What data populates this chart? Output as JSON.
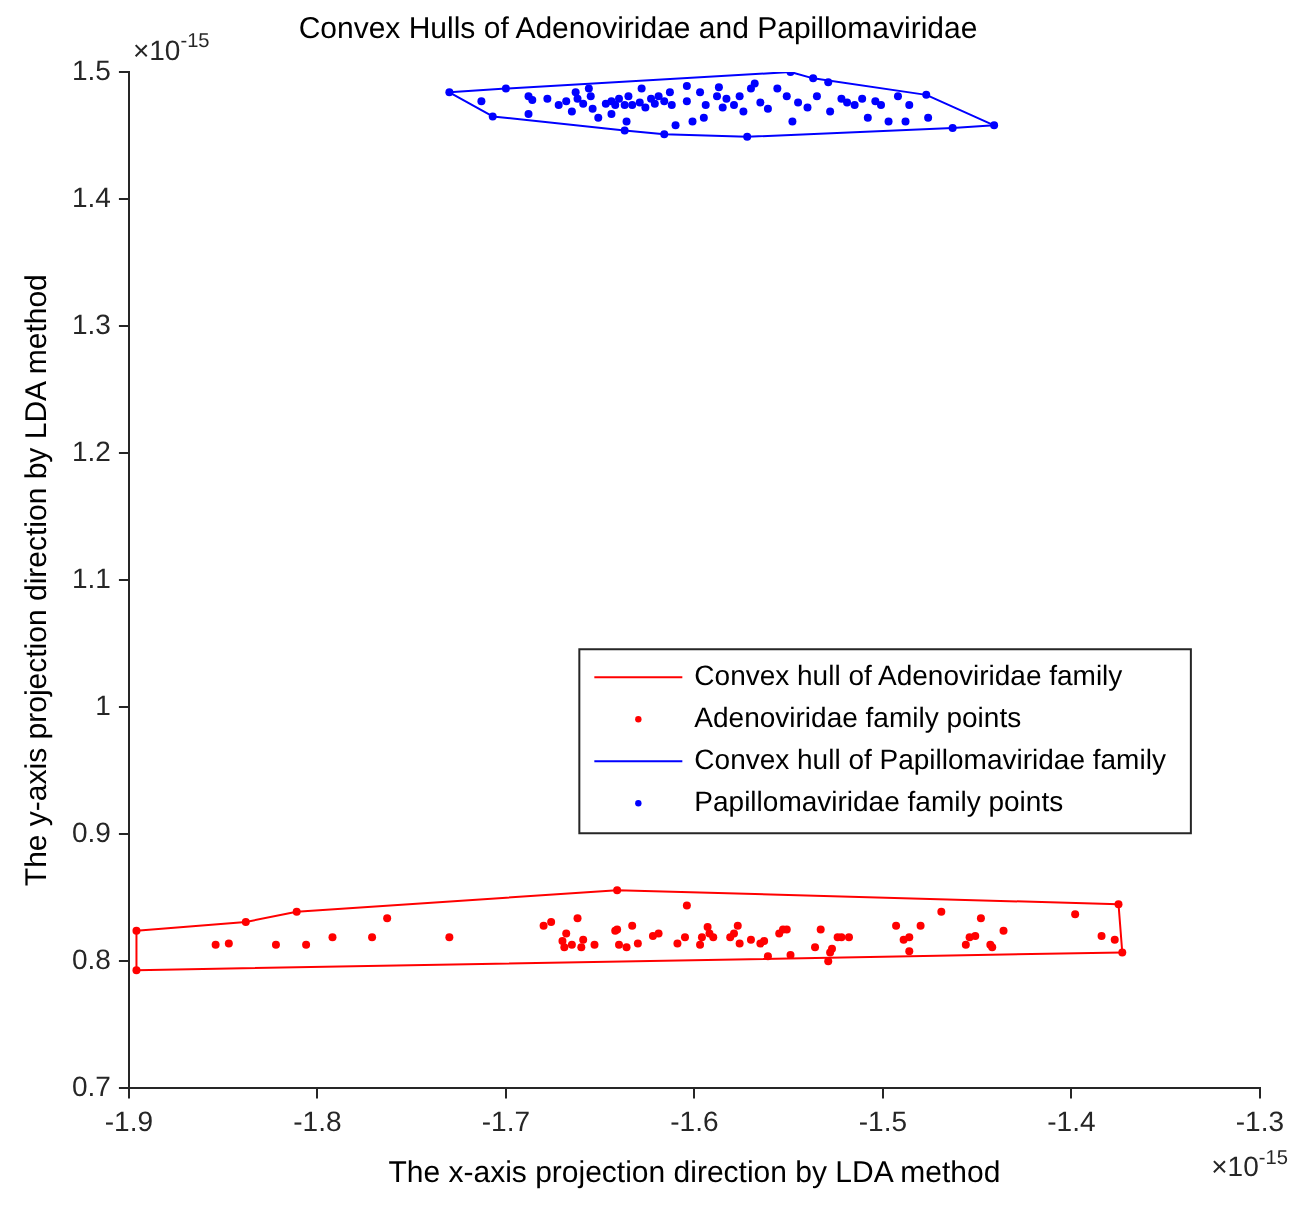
{
  "chart_data": {
    "type": "scatter",
    "title": "Convex Hulls of Adenoviridae and Papillomaviridae",
    "xlabel": "The x-axis projection direction by LDA method",
    "ylabel": "The y-axis projection direction by LDA method",
    "xlim": [
      -1.9,
      -1.3
    ],
    "xticks": [
      -1.9,
      -1.8,
      -1.7,
      -1.6,
      -1.5,
      -1.4,
      -1.3
    ],
    "ylim": [
      0.7,
      1.5
    ],
    "yticks": [
      0.7,
      0.8,
      0.9,
      1,
      1.1,
      1.2,
      1.3,
      1.4,
      1.5
    ],
    "grid": false,
    "legend": "right",
    "annotations": [
      "×10$^{-15}$",
      "×10$^{-15}$"
    ],
    "series": [
      {
        "name": "Convex hull of Adenoviridae family",
        "type": "line",
        "marker": "none",
        "color": "#ff0000",
        "x": [
          -1.896,
          -1.838,
          -1.811,
          -1.641,
          -1.375,
          -1.373
        ],
        "values": [
          0.824,
          0.831,
          0.839,
          0.856,
          0.845,
          0.807
        ]
      },
      {
        "type": "line",
        "marker": "none",
        "color": "#ff0000",
        "x": [
          -1.896,
          -1.896,
          -1.373
        ],
        "values": [
          0.824,
          0.793,
          0.807
        ]
      },
      {
        "name": "Adenoviridae family points",
        "type": "scatter",
        "marker": "circle",
        "color": "#ff0000",
        "x": [
          -1.896,
          -1.896,
          -1.373,
          -1.375,
          -1.641,
          -1.811,
          -1.838,
          -1.854,
          -1.847,
          -1.822,
          -1.806,
          -1.792,
          -1.771,
          -1.763,
          -1.73,
          -1.68,
          -1.676,
          -1.668,
          -1.67,
          -1.662,
          -1.659,
          -1.665,
          -1.669,
          -1.66,
          -1.653,
          -1.642,
          -1.641,
          -1.64,
          -1.636,
          -1.633,
          -1.63,
          -1.622,
          -1.619,
          -1.604,
          -1.609,
          -1.605,
          -1.596,
          -1.593,
          -1.597,
          -1.592,
          -1.59,
          -1.581,
          -1.579,
          -1.577,
          -1.576,
          -1.57,
          -1.565,
          -1.563,
          -1.561,
          -1.555,
          -1.553,
          -1.551,
          -1.549,
          -1.536,
          -1.533,
          -1.528,
          -1.527,
          -1.529,
          -1.524,
          -1.522,
          -1.518,
          -1.493,
          -1.489,
          -1.486,
          -1.486,
          -1.48,
          -1.469,
          -1.456,
          -1.454,
          -1.451,
          -1.448,
          -1.443,
          -1.442,
          -1.436,
          -1.398,
          -1.384,
          -1.377
        ],
        "values": [
          0.824,
          0.793,
          0.807,
          0.845,
          0.856,
          0.839,
          0.831,
          0.813,
          0.814,
          0.813,
          0.813,
          0.819,
          0.819,
          0.834,
          0.819,
          0.828,
          0.831,
          0.822,
          0.816,
          0.834,
          0.817,
          0.813,
          0.811,
          0.811,
          0.813,
          0.824,
          0.825,
          0.813,
          0.811,
          0.828,
          0.814,
          0.82,
          0.822,
          0.844,
          0.814,
          0.819,
          0.819,
          0.827,
          0.813,
          0.822,
          0.819,
          0.819,
          0.822,
          0.828,
          0.814,
          0.817,
          0.814,
          0.816,
          0.804,
          0.822,
          0.825,
          0.825,
          0.805,
          0.811,
          0.825,
          0.807,
          0.81,
          0.8,
          0.819,
          0.819,
          0.819,
          0.828,
          0.817,
          0.819,
          0.808,
          0.828,
          0.839,
          0.813,
          0.819,
          0.82,
          0.834,
          0.813,
          0.811,
          0.824,
          0.837,
          0.82,
          0.817
        ]
      },
      {
        "name": "Convex hull of Papillomaviridae family",
        "type": "line",
        "marker": "none",
        "color": "#0000ff",
        "x": [
          -1.73,
          -1.7,
          -1.549,
          -1.537,
          -1.477,
          -1.441
        ],
        "values": [
          1.484,
          1.487,
          1.5,
          1.495,
          1.482,
          1.458
        ]
      },
      {
        "type": "line",
        "marker": "none",
        "color": "#0000ff",
        "x": [
          -1.73,
          -1.707,
          -1.637,
          -1.616,
          -1.572,
          -1.463,
          -1.441
        ],
        "values": [
          1.484,
          1.465,
          1.454,
          1.451,
          1.449,
          1.456,
          1.458
        ]
      },
      {
        "name": "Papillomaviridae family points",
        "type": "scatter",
        "marker": "circle",
        "color": "#0000ff",
        "x": [
          -1.73,
          -1.7,
          -1.549,
          -1.537,
          -1.477,
          -1.441,
          -1.463,
          -1.572,
          -1.616,
          -1.637,
          -1.707,
          -1.713,
          -1.688,
          -1.686,
          -1.688,
          -1.678,
          -1.672,
          -1.668,
          -1.663,
          -1.665,
          -1.662,
          -1.659,
          -1.656,
          -1.655,
          -1.654,
          -1.651,
          -1.647,
          -1.644,
          -1.644,
          -1.642,
          -1.64,
          -1.637,
          -1.636,
          -1.635,
          -1.633,
          -1.629,
          -1.628,
          -1.626,
          -1.623,
          -1.621,
          -1.619,
          -1.616,
          -1.613,
          -1.612,
          -1.61,
          -1.604,
          -1.604,
          -1.601,
          -1.597,
          -1.595,
          -1.594,
          -1.588,
          -1.587,
          -1.585,
          -1.583,
          -1.579,
          -1.576,
          -1.574,
          -1.57,
          -1.568,
          -1.565,
          -1.561,
          -1.556,
          -1.551,
          -1.548,
          -1.545,
          -1.54,
          -1.535,
          -1.529,
          -1.528,
          -1.522,
          -1.519,
          -1.515,
          -1.511,
          -1.508,
          -1.504,
          -1.501,
          -1.497,
          -1.492,
          -1.488,
          -1.486,
          -1.476
        ],
        "values": [
          1.484,
          1.487,
          1.5,
          1.495,
          1.482,
          1.458,
          1.456,
          1.449,
          1.451,
          1.454,
          1.465,
          1.477,
          1.481,
          1.478,
          1.467,
          1.479,
          1.474,
          1.477,
          1.484,
          1.469,
          1.479,
          1.475,
          1.487,
          1.481,
          1.471,
          1.464,
          1.475,
          1.477,
          1.467,
          1.474,
          1.479,
          1.474,
          1.461,
          1.481,
          1.474,
          1.476,
          1.487,
          1.472,
          1.479,
          1.475,
          1.481,
          1.477,
          1.484,
          1.474,
          1.458,
          1.489,
          1.477,
          1.461,
          1.484,
          1.464,
          1.474,
          1.481,
          1.488,
          1.472,
          1.479,
          1.474,
          1.481,
          1.469,
          1.487,
          1.491,
          1.476,
          1.471,
          1.487,
          1.481,
          1.461,
          1.476,
          1.472,
          1.481,
          1.492,
          1.469,
          1.479,
          1.476,
          1.474,
          1.479,
          1.464,
          1.477,
          1.474,
          1.461,
          1.481,
          1.461,
          1.474,
          1.464
        ]
      }
    ]
  }
}
